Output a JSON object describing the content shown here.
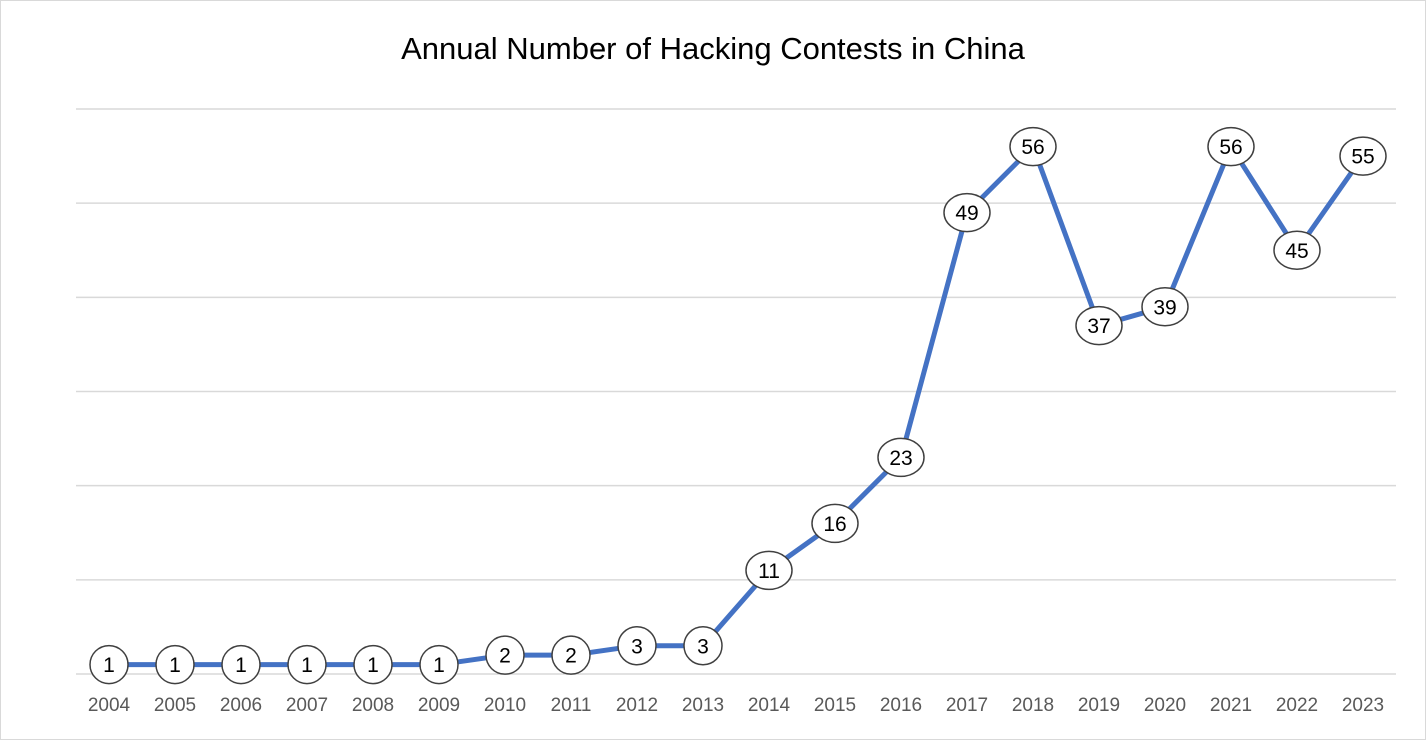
{
  "chart_data": {
    "type": "line",
    "title": "Annual Number of Hacking Contests in China",
    "xlabel": "",
    "ylabel": "",
    "x": [
      "2004",
      "2005",
      "2006",
      "2007",
      "2008",
      "2009",
      "2010",
      "2011",
      "2012",
      "2013",
      "2014",
      "2015",
      "2016",
      "2017",
      "2018",
      "2019",
      "2020",
      "2021",
      "2022",
      "2023"
    ],
    "series": [
      {
        "values": [
          1,
          1,
          1,
          1,
          1,
          1,
          2,
          2,
          3,
          3,
          11,
          16,
          23,
          49,
          56,
          37,
          39,
          56,
          45,
          55
        ],
        "color": "#4472c4"
      }
    ],
    "ylim": [
      0,
      60
    ],
    "grid": true,
    "legend": "none",
    "data_labels": true
  }
}
